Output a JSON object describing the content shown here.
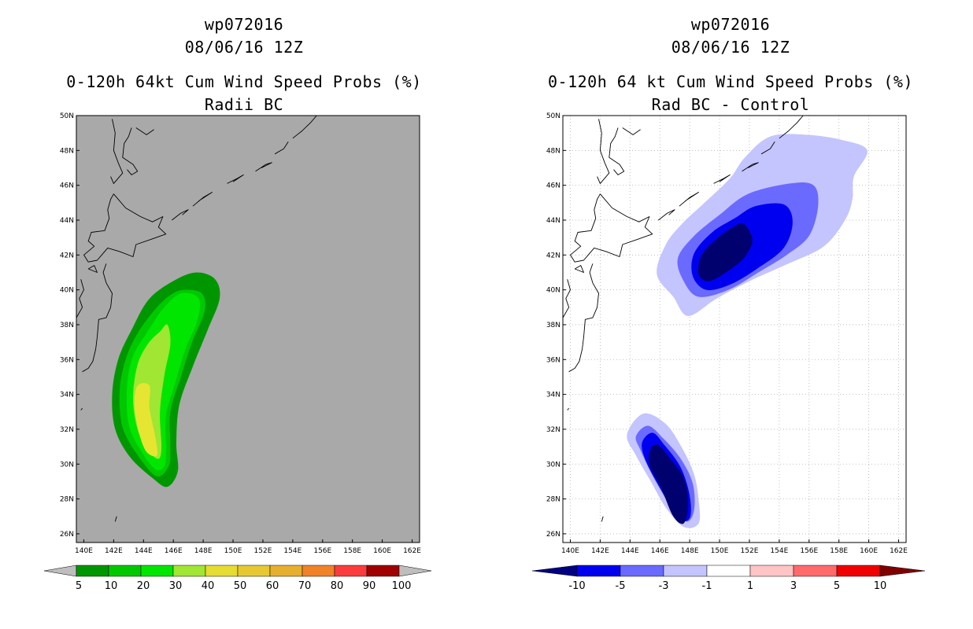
{
  "left_panel": {
    "title_line1": "wp072016",
    "title_line2": "08/06/16 12Z",
    "title_line3": "0-120h 64kt Cum Wind Speed Probs (%)",
    "title_line4": "Radii BC",
    "background_color": "#a9a9a9"
  },
  "right_panel": {
    "title_line1": "wp072016",
    "title_line2": "08/06/16 12Z",
    "title_line3": "0-120h 64 kt Cum Wind Speed Probs (%)",
    "title_line4": "Rad BC - Control",
    "background_color": "#ffffff"
  },
  "axes": {
    "lon_labels": [
      "140E",
      "142E",
      "144E",
      "146E",
      "148E",
      "150E",
      "152E",
      "154E",
      "156E",
      "158E",
      "160E",
      "162E"
    ],
    "lat_labels": [
      "26N",
      "28N",
      "30N",
      "32N",
      "34N",
      "36N",
      "38N",
      "40N",
      "42N",
      "44N",
      "46N",
      "48N",
      "50N"
    ]
  },
  "left_colorbar": {
    "labels": [
      "5",
      "10",
      "20",
      "30",
      "40",
      "50",
      "60",
      "70",
      "80",
      "90",
      "100"
    ],
    "colors": [
      "#009600",
      "#00c800",
      "#00e600",
      "#a0e632",
      "#e6dc32",
      "#e6c832",
      "#e6af2d",
      "#f08228",
      "#fa3c3c",
      "#a00000",
      "#8c00dc"
    ],
    "end_color": "#bebebe"
  },
  "right_colorbar": {
    "labels": [
      "-10",
      "-5",
      "-3",
      "-1",
      "1",
      "3",
      "5",
      "10"
    ],
    "colors": [
      "#000080",
      "#0000f0",
      "#6a6aff",
      "#c4c4ff",
      "#ffffff",
      "#ffc4c4",
      "#ff6a6a",
      "#f00000",
      "#800000"
    ]
  },
  "chart_data": [
    {
      "type": "heatmap",
      "title": "0-120h 64kt Cum Wind Speed Probs (%) Radii BC",
      "xlim": [
        139.5,
        162.5
      ],
      "ylim": [
        25.5,
        50
      ],
      "levels": [
        5,
        10,
        20,
        30,
        40,
        50,
        60,
        70,
        80,
        90,
        100
      ],
      "contours": [
        {
          "level": 5,
          "color": "#009600",
          "points": [
            [
              147.6,
              41.0
            ],
            [
              148.8,
              40.6
            ],
            [
              149.1,
              39.5
            ],
            [
              148.3,
              37.7
            ],
            [
              147.3,
              35.6
            ],
            [
              146.4,
              33.4
            ],
            [
              146.2,
              31.2
            ],
            [
              146.3,
              29.6
            ],
            [
              145.6,
              28.7
            ],
            [
              144.6,
              29.2
            ],
            [
              143.1,
              30.4
            ],
            [
              142.1,
              32.0
            ],
            [
              141.9,
              34.0
            ],
            [
              142.3,
              36.0
            ],
            [
              143.2,
              37.7
            ],
            [
              144.4,
              39.5
            ],
            [
              146.2,
              40.6
            ]
          ]
        },
        {
          "level": 10,
          "color": "#00c800",
          "points": [
            [
              146.7,
              40.0
            ],
            [
              147.9,
              39.8
            ],
            [
              148.1,
              38.8
            ],
            [
              147.3,
              37.1
            ],
            [
              146.5,
              35.0
            ],
            [
              145.8,
              33.0
            ],
            [
              145.8,
              31.0
            ],
            [
              145.7,
              29.9
            ],
            [
              144.9,
              29.3
            ],
            [
              143.7,
              30.4
            ],
            [
              142.6,
              32.1
            ],
            [
              142.4,
              34.2
            ],
            [
              142.8,
              36.0
            ],
            [
              143.6,
              37.5
            ],
            [
              144.8,
              38.9
            ],
            [
              145.8,
              39.7
            ]
          ]
        },
        {
          "level": 20,
          "color": "#00e600",
          "points": [
            [
              146.5,
              39.8
            ],
            [
              147.7,
              39.5
            ],
            [
              147.6,
              38.2
            ],
            [
              146.8,
              36.6
            ],
            [
              146.1,
              34.6
            ],
            [
              145.5,
              32.8
            ],
            [
              145.5,
              30.9
            ],
            [
              145.4,
              29.9
            ],
            [
              144.8,
              29.7
            ],
            [
              143.8,
              30.8
            ],
            [
              143.0,
              32.3
            ],
            [
              142.9,
              34.5
            ],
            [
              143.3,
              36.2
            ],
            [
              144.2,
              37.5
            ],
            [
              145.3,
              38.9
            ]
          ]
        },
        {
          "level": 30,
          "color": "#a0e632",
          "points": [
            [
              145.6,
              38.0
            ],
            [
              145.8,
              36.9
            ],
            [
              145.4,
              35.1
            ],
            [
              145.1,
              33.0
            ],
            [
              145.2,
              31.0
            ],
            [
              145.0,
              30.3
            ],
            [
              144.3,
              30.8
            ],
            [
              143.6,
              32.0
            ],
            [
              143.3,
              33.8
            ],
            [
              143.6,
              35.7
            ],
            [
              144.3,
              36.9
            ],
            [
              145.1,
              37.6
            ]
          ]
        },
        {
          "level": 40,
          "color": "#e6e632",
          "points": [
            [
              144.4,
              34.5
            ],
            [
              144.4,
              33.2
            ],
            [
              144.8,
              31.5
            ],
            [
              144.9,
              30.5
            ],
            [
              144.2,
              30.7
            ],
            [
              143.7,
              31.8
            ],
            [
              143.4,
              33.4
            ],
            [
              143.6,
              34.5
            ]
          ]
        }
      ]
    },
    {
      "type": "heatmap",
      "title": "0-120h 64 kt Cum Wind Speed Probs (%) Rad BC - Control",
      "xlim": [
        139.5,
        162.5
      ],
      "ylim": [
        25.5,
        50
      ],
      "levels": [
        -10,
        -5,
        -3,
        -1,
        1,
        3,
        5,
        10
      ],
      "contours": [
        {
          "level": -1,
          "color": "#c4c4ff",
          "points": [
            [
              153.4,
              48.8
            ],
            [
              155.8,
              48.9
            ],
            [
              158.2,
              48.6
            ],
            [
              159.9,
              48.0
            ],
            [
              159.0,
              46.5
            ],
            [
              158.9,
              45.2
            ],
            [
              158.4,
              44.0
            ],
            [
              157.0,
              42.5
            ],
            [
              154.6,
              41.5
            ],
            [
              152.0,
              40.5
            ],
            [
              149.8,
              39.5
            ],
            [
              147.9,
              38.5
            ],
            [
              146.9,
              39.6
            ],
            [
              145.8,
              40.9
            ],
            [
              146.4,
              42.6
            ],
            [
              147.5,
              43.8
            ],
            [
              149.0,
              45.0
            ],
            [
              150.7,
              46.4
            ],
            [
              151.7,
              47.6
            ]
          ]
        },
        {
          "level": -3,
          "color": "#6a6aff",
          "points": [
            [
              154.7,
              46.1
            ],
            [
              156.3,
              46.0
            ],
            [
              156.6,
              44.8
            ],
            [
              156.0,
              43.1
            ],
            [
              154.5,
              42.0
            ],
            [
              152.6,
              41.0
            ],
            [
              150.6,
              40.0
            ],
            [
              148.6,
              39.6
            ],
            [
              147.6,
              40.5
            ],
            [
              147.2,
              41.8
            ],
            [
              148.3,
              43.1
            ],
            [
              150.0,
              44.3
            ],
            [
              151.9,
              45.5
            ]
          ]
        },
        {
          "level": -5,
          "color": "#0000f0",
          "points": [
            [
              152.4,
              44.8
            ],
            [
              154.3,
              44.9
            ],
            [
              154.9,
              43.9
            ],
            [
              154.3,
              42.4
            ],
            [
              152.5,
              41.2
            ],
            [
              150.7,
              40.3
            ],
            [
              149.1,
              40.0
            ],
            [
              148.2,
              40.8
            ],
            [
              148.3,
              42.1
            ],
            [
              149.5,
              43.3
            ],
            [
              151.0,
              44.1
            ]
          ]
        },
        {
          "level": -10,
          "color": "#00006e",
          "points": [
            [
              151.6,
              43.8
            ],
            [
              152.2,
              42.9
            ],
            [
              151.7,
              41.9
            ],
            [
              150.6,
              41.1
            ],
            [
              149.3,
              40.5
            ],
            [
              148.6,
              40.9
            ],
            [
              148.8,
              42.0
            ],
            [
              149.9,
              43.0
            ],
            [
              150.9,
              43.6
            ]
          ]
        },
        {
          "level": -1,
          "color": "#c4c4ff",
          "points": [
            [
              144.9,
              32.9
            ],
            [
              146.4,
              32.3
            ],
            [
              147.5,
              30.9
            ],
            [
              148.3,
              29.4
            ],
            [
              148.6,
              27.9
            ],
            [
              148.6,
              26.6
            ],
            [
              147.6,
              26.4
            ],
            [
              146.4,
              27.5
            ],
            [
              145.4,
              29.0
            ],
            [
              144.4,
              30.5
            ],
            [
              143.8,
              31.7
            ]
          ]
        },
        {
          "level": -3,
          "color": "#6a6aff",
          "points": [
            [
              145.2,
              32.2
            ],
            [
              146.2,
              31.5
            ],
            [
              147.4,
              30.3
            ],
            [
              148.2,
              28.9
            ],
            [
              148.3,
              27.4
            ],
            [
              147.8,
              26.7
            ],
            [
              146.8,
              27.5
            ],
            [
              145.6,
              29.2
            ],
            [
              144.7,
              30.8
            ],
            [
              144.4,
              31.6
            ]
          ]
        },
        {
          "level": -5,
          "color": "#0000f0",
          "points": [
            [
              145.5,
              31.8
            ],
            [
              146.3,
              31.1
            ],
            [
              147.4,
              29.8
            ],
            [
              148.0,
              28.2
            ],
            [
              148.0,
              26.9
            ],
            [
              147.2,
              26.9
            ],
            [
              146.1,
              28.5
            ],
            [
              145.1,
              30.1
            ],
            [
              144.8,
              31.2
            ]
          ]
        },
        {
          "level": -10,
          "color": "#00006e",
          "points": [
            [
              145.9,
              31.1
            ],
            [
              146.7,
              30.3
            ],
            [
              147.6,
              29.2
            ],
            [
              147.9,
              27.7
            ],
            [
              147.6,
              26.6
            ],
            [
              146.9,
              27.0
            ],
            [
              146.1,
              28.6
            ],
            [
              145.3,
              30.0
            ],
            [
              145.4,
              30.9
            ]
          ]
        }
      ]
    }
  ]
}
